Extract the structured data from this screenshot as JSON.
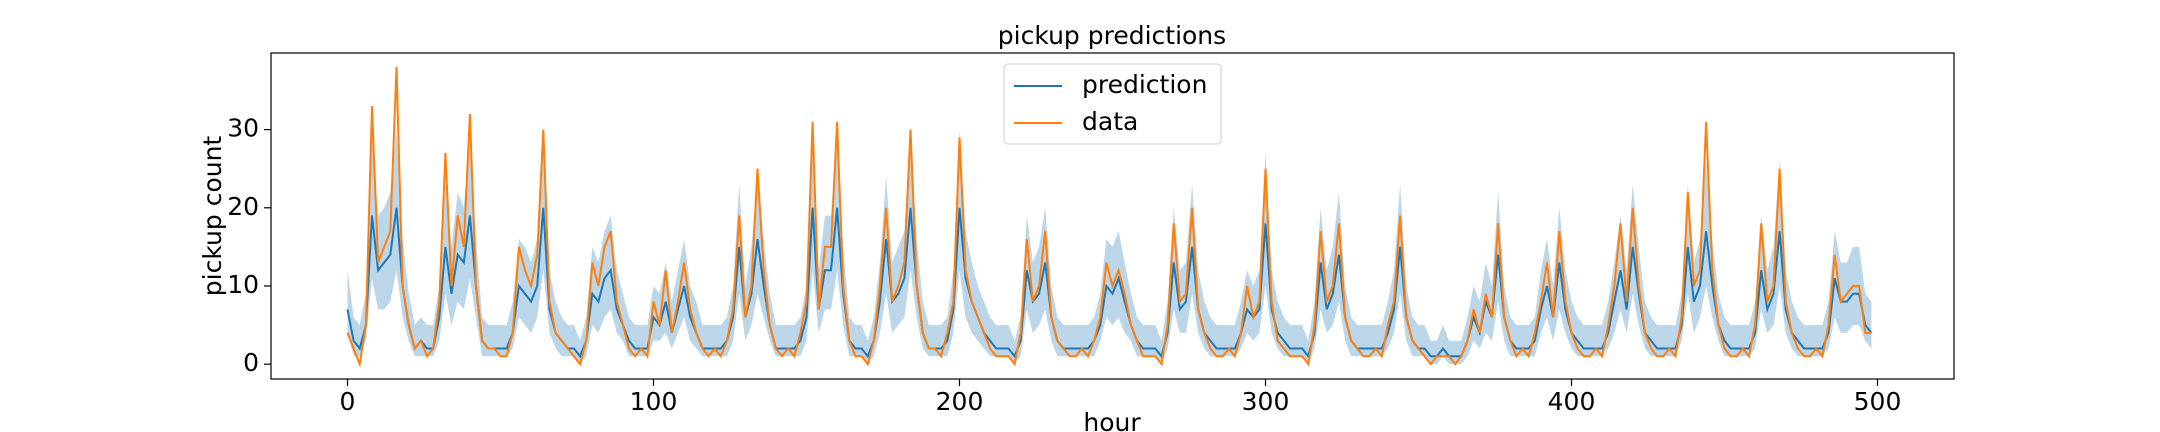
{
  "chart_data": {
    "type": "line",
    "title": "pickup predictions",
    "x_label": "hour",
    "y_label": "pickup count",
    "xlim": [
      -25,
      525
    ],
    "xticks": [
      0,
      100,
      200,
      300,
      400,
      500
    ],
    "ylim": [
      -1.9,
      39.8
    ],
    "yticks": [
      0,
      10,
      20,
      30
    ],
    "grid": false,
    "legend": "upper center",
    "x": [
      0,
      2,
      4,
      6,
      8,
      10,
      12,
      14,
      16,
      18,
      20,
      22,
      24,
      26,
      28,
      30,
      32,
      34,
      36,
      38,
      40,
      42,
      44,
      46,
      48,
      50,
      52,
      54,
      56,
      58,
      60,
      62,
      64,
      66,
      68,
      70,
      72,
      74,
      76,
      78,
      80,
      82,
      84,
      86,
      88,
      90,
      92,
      94,
      96,
      98,
      100,
      102,
      104,
      106,
      108,
      110,
      112,
      114,
      116,
      118,
      120,
      122,
      124,
      126,
      128,
      130,
      132,
      134,
      136,
      138,
      140,
      142,
      144,
      146,
      148,
      150,
      152,
      154,
      156,
      158,
      160,
      162,
      164,
      166,
      168,
      170,
      172,
      174,
      176,
      178,
      180,
      182,
      184,
      186,
      188,
      190,
      192,
      194,
      196,
      198,
      200,
      202,
      204,
      206,
      208,
      210,
      212,
      214,
      216,
      218,
      220,
      222,
      224,
      226,
      228,
      230,
      232,
      234,
      236,
      238,
      240,
      242,
      244,
      246,
      248,
      250,
      252,
      254,
      256,
      258,
      260,
      262,
      264,
      266,
      268,
      270,
      272,
      274,
      276,
      278,
      280,
      282,
      284,
      286,
      288,
      290,
      292,
      294,
      296,
      298,
      300,
      302,
      304,
      306,
      308,
      310,
      312,
      314,
      316,
      318,
      320,
      322,
      324,
      326,
      328,
      330,
      332,
      334,
      336,
      338,
      340,
      342,
      344,
      346,
      348,
      350,
      352,
      354,
      356,
      358,
      360,
      362,
      364,
      366,
      368,
      370,
      372,
      374,
      376,
      378,
      380,
      382,
      384,
      386,
      388,
      390,
      392,
      394,
      396,
      398,
      400,
      402,
      404,
      406,
      408,
      410,
      412,
      414,
      416,
      418,
      420,
      422,
      424,
      426,
      428,
      430,
      432,
      434,
      436,
      438,
      440,
      442,
      444,
      446,
      448,
      450,
      452,
      454,
      456,
      458,
      460,
      462,
      464,
      466,
      468,
      470,
      472,
      474,
      476,
      478,
      480,
      482,
      484,
      486,
      488,
      490,
      492,
      494,
      496,
      498
    ],
    "band": {
      "color": "#1f77b4",
      "lower": [
        4,
        1,
        1,
        3,
        11,
        7,
        7,
        8,
        12,
        6,
        3,
        1,
        1,
        1,
        1,
        3,
        9,
        5,
        8,
        7,
        11,
        6,
        1,
        1,
        1,
        1,
        1,
        2,
        6,
        5,
        4,
        6,
        12,
        4,
        2,
        1,
        1,
        1,
        0,
        1,
        5,
        4,
        6,
        7,
        4,
        3,
        1,
        1,
        1,
        1,
        3,
        3,
        4,
        2,
        4,
        6,
        3,
        2,
        1,
        1,
        1,
        1,
        1,
        3,
        9,
        3,
        5,
        9,
        6,
        3,
        1,
        1,
        1,
        1,
        1,
        3,
        12,
        4,
        7,
        7,
        12,
        5,
        1,
        1,
        1,
        0,
        1,
        4,
        9,
        4,
        5,
        6,
        12,
        6,
        2,
        1,
        1,
        1,
        1,
        4,
        12,
        6,
        4,
        3,
        2,
        1,
        1,
        1,
        1,
        0,
        1,
        7,
        4,
        5,
        7,
        3,
        1,
        1,
        1,
        1,
        1,
        1,
        1,
        3,
        6,
        5,
        6,
        4,
        3,
        1,
        1,
        1,
        1,
        0,
        2,
        7,
        4,
        4,
        9,
        4,
        2,
        1,
        1,
        1,
        1,
        1,
        2,
        4,
        3,
        4,
        10,
        4,
        2,
        1,
        1,
        1,
        1,
        0,
        2,
        7,
        4,
        5,
        8,
        3,
        1,
        1,
        1,
        1,
        1,
        1,
        2,
        4,
        9,
        3,
        1,
        1,
        1,
        0,
        0,
        1,
        0,
        0,
        0,
        1,
        3,
        2,
        4,
        3,
        8,
        3,
        1,
        1,
        1,
        1,
        1,
        4,
        6,
        3,
        7,
        4,
        2,
        1,
        1,
        1,
        1,
        1,
        2,
        4,
        7,
        4,
        9,
        5,
        2,
        1,
        1,
        1,
        1,
        1,
        3,
        9,
        4,
        6,
        10,
        6,
        3,
        1,
        1,
        1,
        1,
        1,
        2,
        7,
        4,
        5,
        10,
        4,
        2,
        1,
        1,
        1,
        1,
        1,
        2,
        6,
        4,
        4,
        5,
        5,
        3,
        2
      ],
      "upper": [
        12,
        6,
        5,
        9,
        29,
        19,
        20,
        22,
        30,
        16,
        9,
        5,
        6,
        5,
        5,
        10,
        23,
        15,
        22,
        20,
        29,
        16,
        6,
        5,
        5,
        5,
        5,
        8,
        16,
        15,
        13,
        16,
        30,
        12,
        8,
        6,
        5,
        5,
        3,
        6,
        15,
        13,
        17,
        19,
        12,
        9,
        6,
        5,
        5,
        5,
        10,
        9,
        13,
        8,
        12,
        16,
        10,
        8,
        5,
        5,
        5,
        5,
        6,
        10,
        23,
        10,
        15,
        24,
        16,
        9,
        5,
        5,
        5,
        5,
        6,
        10,
        30,
        12,
        19,
        19,
        30,
        15,
        6,
        5,
        5,
        3,
        6,
        13,
        24,
        13,
        15,
        17,
        30,
        16,
        8,
        5,
        5,
        5,
        6,
        12,
        30,
        17,
        13,
        10,
        8,
        6,
        5,
        5,
        5,
        3,
        6,
        19,
        13,
        15,
        20,
        10,
        6,
        5,
        5,
        5,
        5,
        5,
        6,
        9,
        16,
        15,
        17,
        13,
        9,
        6,
        5,
        5,
        5,
        3,
        8,
        20,
        12,
        13,
        23,
        12,
        8,
        6,
        5,
        5,
        5,
        5,
        8,
        12,
        10,
        12,
        27,
        12,
        8,
        6,
        5,
        5,
        5,
        3,
        8,
        20,
        12,
        15,
        22,
        10,
        6,
        5,
        5,
        5,
        5,
        5,
        8,
        12,
        23,
        10,
        6,
        5,
        5,
        3,
        3,
        5,
        3,
        3,
        3,
        6,
        10,
        8,
        13,
        10,
        22,
        10,
        6,
        5,
        5,
        5,
        6,
        12,
        16,
        10,
        20,
        12,
        8,
        6,
        5,
        5,
        5,
        5,
        8,
        13,
        19,
        12,
        23,
        15,
        8,
        6,
        5,
        5,
        5,
        5,
        9,
        23,
        13,
        16,
        26,
        16,
        9,
        6,
        5,
        5,
        5,
        5,
        8,
        19,
        12,
        15,
        26,
        12,
        8,
        6,
        5,
        5,
        5,
        5,
        8,
        17,
        13,
        13,
        15,
        15,
        9,
        8
      ]
    },
    "series": [
      {
        "name": "prediction",
        "color": "#1f77b4",
        "values": [
          7,
          3,
          2,
          5,
          19,
          12,
          13,
          14,
          20,
          10,
          5,
          2,
          3,
          2,
          2,
          6,
          15,
          9,
          14,
          13,
          19,
          10,
          3,
          2,
          2,
          2,
          2,
          4,
          10,
          9,
          8,
          10,
          20,
          7,
          4,
          3,
          2,
          2,
          1,
          3,
          9,
          8,
          11,
          12,
          7,
          5,
          3,
          2,
          2,
          2,
          6,
          5,
          8,
          4,
          7,
          10,
          6,
          4,
          2,
          2,
          2,
          2,
          3,
          6,
          15,
          6,
          9,
          16,
          10,
          5,
          2,
          2,
          2,
          2,
          3,
          6,
          20,
          7,
          12,
          12,
          20,
          9,
          3,
          2,
          2,
          1,
          3,
          8,
          16,
          8,
          9,
          11,
          20,
          10,
          4,
          2,
          2,
          2,
          3,
          7,
          20,
          11,
          8,
          6,
          4,
          3,
          2,
          2,
          2,
          1,
          3,
          12,
          8,
          9,
          13,
          6,
          3,
          2,
          2,
          2,
          2,
          2,
          3,
          5,
          10,
          9,
          11,
          8,
          5,
          3,
          2,
          2,
          2,
          1,
          4,
          13,
          7,
          8,
          15,
          7,
          4,
          3,
          2,
          2,
          2,
          2,
          4,
          7,
          6,
          7,
          18,
          7,
          4,
          3,
          2,
          2,
          2,
          1,
          4,
          13,
          7,
          9,
          14,
          6,
          3,
          2,
          2,
          2,
          2,
          2,
          4,
          7,
          15,
          6,
          3,
          2,
          2,
          1,
          1,
          2,
          1,
          1,
          1,
          3,
          6,
          4,
          8,
          6,
          14,
          6,
          3,
          2,
          2,
          2,
          3,
          7,
          10,
          6,
          13,
          7,
          4,
          3,
          2,
          2,
          2,
          2,
          4,
          8,
          12,
          7,
          15,
          9,
          4,
          3,
          2,
          2,
          2,
          2,
          5,
          15,
          8,
          10,
          17,
          10,
          5,
          3,
          2,
          2,
          2,
          2,
          4,
          12,
          7,
          9,
          17,
          7,
          4,
          3,
          2,
          2,
          2,
          2,
          4,
          11,
          8,
          8,
          9,
          9,
          5,
          4
        ]
      },
      {
        "name": "data",
        "color": "#ff7f0e",
        "values": [
          4,
          2,
          0,
          5,
          33,
          13,
          15,
          17,
          38,
          10,
          5,
          2,
          3,
          1,
          2,
          8,
          27,
          10,
          19,
          15,
          32,
          10,
          3,
          2,
          2,
          1,
          1,
          4,
          15,
          12,
          10,
          14,
          30,
          8,
          4,
          3,
          2,
          1,
          0,
          3,
          13,
          10,
          15,
          17,
          8,
          5,
          2,
          1,
          2,
          1,
          8,
          5,
          12,
          4,
          8,
          13,
          7,
          4,
          2,
          1,
          2,
          1,
          3,
          7,
          19,
          6,
          10,
          25,
          12,
          5,
          2,
          1,
          2,
          1,
          4,
          8,
          31,
          7,
          15,
          15,
          31,
          10,
          3,
          1,
          1,
          0,
          3,
          10,
          20,
          8,
          10,
          13,
          30,
          10,
          4,
          2,
          2,
          1,
          4,
          8,
          29,
          12,
          8,
          6,
          4,
          2,
          1,
          1,
          1,
          0,
          4,
          16,
          8,
          10,
          17,
          6,
          3,
          2,
          1,
          1,
          2,
          1,
          3,
          6,
          13,
          10,
          12,
          9,
          5,
          3,
          1,
          1,
          1,
          0,
          5,
          18,
          8,
          9,
          20,
          7,
          4,
          2,
          1,
          1,
          2,
          1,
          4,
          10,
          6,
          8,
          25,
          8,
          3,
          2,
          1,
          1,
          1,
          0,
          5,
          17,
          8,
          10,
          18,
          6,
          3,
          2,
          1,
          1,
          2,
          1,
          5,
          8,
          19,
          6,
          3,
          2,
          1,
          0,
          1,
          1,
          1,
          0,
          1,
          3,
          7,
          4,
          9,
          6,
          18,
          6,
          3,
          1,
          2,
          1,
          4,
          8,
          13,
          6,
          17,
          8,
          4,
          2,
          1,
          1,
          2,
          1,
          5,
          10,
          18,
          8,
          20,
          10,
          4,
          2,
          1,
          1,
          2,
          1,
          6,
          22,
          10,
          12,
          31,
          12,
          5,
          2,
          1,
          1,
          2,
          1,
          5,
          18,
          8,
          10,
          25,
          8,
          4,
          2,
          1,
          1,
          2,
          1,
          5,
          14,
          8,
          9,
          10,
          10,
          4,
          4
        ]
      }
    ]
  }
}
